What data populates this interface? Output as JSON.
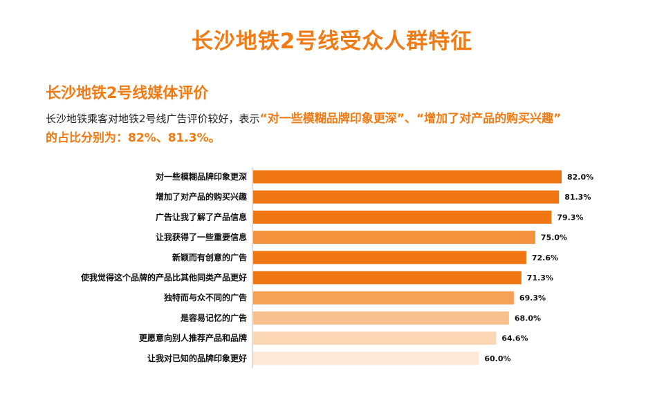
{
  "page": {
    "title": "长沙地铁2号线受众人群特征",
    "section_title": "长沙地铁2号线媒体评价",
    "desc_part1": "长沙地铁乘客对地铁2号线广告评价较好，表示",
    "desc_highlight1": "“对一些模糊品牌印象更深”、“增加了对产品的购买兴趣”",
    "desc_highlight2": "的占比分别为：82%、81.3%。"
  },
  "chart_data": {
    "type": "bar",
    "orientation": "horizontal",
    "categories": [
      "对一些模糊品牌印象更深",
      "增加了对产品的购买兴趣",
      "广告让我了解了产品信息",
      "让我获得了一些重要信息",
      "新颖而有创意的广告",
      "使我觉得这个品牌的产品比其他同类产品更好",
      "独特而与众不同的广告",
      "是容易记忆的广告",
      "更愿意向别人推荐产品和品牌",
      "让我对已知的品牌印象更好"
    ],
    "values": [
      82.0,
      81.3,
      79.3,
      75.0,
      72.6,
      71.3,
      69.3,
      68.0,
      64.6,
      60.0
    ],
    "value_labels": [
      "82.0%",
      "81.3%",
      "79.3%",
      "75.0%",
      "72.6%",
      "71.3%",
      "69.3%",
      "68.0%",
      "64.6%",
      "60.0%"
    ],
    "colors": [
      "#f07613",
      "#f07613",
      "#f07613",
      "#f3913d",
      "#f07613",
      "#f07613",
      "#f5a156",
      "#f9c08f",
      "#fbd6b5",
      "#fde8d8"
    ],
    "title": "",
    "xlabel": "",
    "ylabel": "",
    "xlim": [
      0,
      100
    ],
    "grid": false,
    "legend": "none"
  }
}
